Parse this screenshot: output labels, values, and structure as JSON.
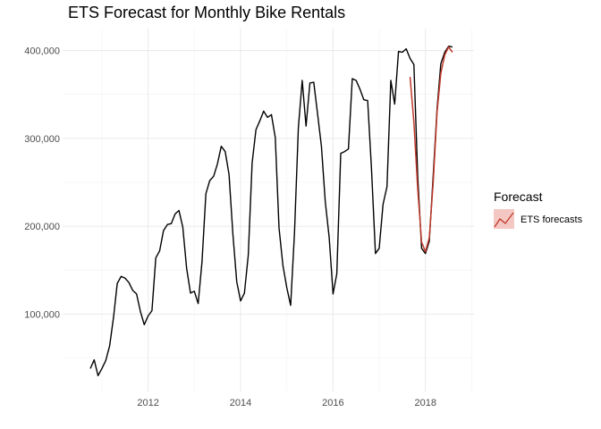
{
  "chart_data": {
    "type": "line",
    "title": "ETS Forecast for Monthly Bike Rentals",
    "xlabel": "",
    "ylabel": "",
    "xlim": [
      2010.15,
      2019.05
    ],
    "ylim": [
      12000,
      425000
    ],
    "x_ticks": [
      2012,
      2014,
      2016,
      2018
    ],
    "x_tick_labels": [
      "2012",
      "2014",
      "2016",
      "2018"
    ],
    "y_ticks": [
      100000,
      200000,
      300000,
      400000
    ],
    "y_tick_labels": [
      "100,000",
      "200,000",
      "300,000",
      "400,000"
    ],
    "grid": true,
    "legend": {
      "title": "Forecast",
      "position": "right",
      "entries": [
        {
          "label": "ETS forecasts",
          "color": "#c0392b",
          "fill": "#f4c7c3"
        }
      ]
    },
    "series": [
      {
        "color": "#000000",
        "x": [
          2010.75,
          2010.833,
          2010.917,
          2011.0,
          2011.083,
          2011.167,
          2011.25,
          2011.333,
          2011.417,
          2011.5,
          2011.583,
          2011.667,
          2011.75,
          2011.833,
          2011.917,
          2012.0,
          2012.083,
          2012.167,
          2012.25,
          2012.333,
          2012.417,
          2012.5,
          2012.583,
          2012.667,
          2012.75,
          2012.833,
          2012.917,
          2013.0,
          2013.083,
          2013.167,
          2013.25,
          2013.333,
          2013.417,
          2013.5,
          2013.583,
          2013.667,
          2013.75,
          2013.833,
          2013.917,
          2014.0,
          2014.083,
          2014.167,
          2014.25,
          2014.333,
          2014.417,
          2014.5,
          2014.583,
          2014.667,
          2014.75,
          2014.833,
          2014.917,
          2015.0,
          2015.083,
          2015.167,
          2015.25,
          2015.333,
          2015.417,
          2015.5,
          2015.583,
          2015.667,
          2015.75,
          2015.833,
          2015.917,
          2016.0,
          2016.083,
          2016.167,
          2016.25,
          2016.333,
          2016.417,
          2016.5,
          2016.583,
          2016.667,
          2016.75,
          2016.833,
          2016.917,
          2017.0,
          2017.083,
          2017.167,
          2017.25,
          2017.333,
          2017.417,
          2017.5,
          2017.583,
          2017.667,
          2017.75,
          2017.833,
          2017.917,
          2018.0,
          2018.083,
          2018.167,
          2018.25,
          2018.333,
          2018.417,
          2018.5,
          2018.583
        ],
        "y": [
          38000,
          48000,
          30000,
          38000,
          47000,
          64000,
          96000,
          135000,
          143000,
          141000,
          136000,
          127000,
          123000,
          103000,
          88000,
          98000,
          104000,
          164000,
          172000,
          195000,
          202000,
          203000,
          214000,
          218000,
          199000,
          152000,
          124000,
          126000,
          112000,
          160000,
          237000,
          252000,
          257000,
          271000,
          291000,
          285000,
          259000,
          191000,
          137000,
          115000,
          124000,
          167000,
          272000,
          310000,
          320000,
          331000,
          324000,
          327000,
          301000,
          198000,
          155000,
          130000,
          110000,
          193000,
          312000,
          366000,
          314000,
          363000,
          364000,
          328000,
          291000,
          228000,
          187000,
          123000,
          146000,
          283000,
          285000,
          288000,
          368000,
          366000,
          356000,
          344000,
          343000,
          265000,
          169000,
          175000,
          225000,
          245000,
          366000,
          339000,
          399000,
          398000,
          402000,
          391000,
          384000,
          256000,
          175000,
          169000,
          183000,
          258000,
          334000,
          385000,
          398000,
          405000,
          404000
        ]
      },
      {
        "name": "ETS forecasts",
        "color": "#c0392b",
        "x": [
          2017.667,
          2017.75,
          2017.833,
          2017.917,
          2018.0,
          2018.083,
          2018.167,
          2018.25,
          2018.333,
          2018.417,
          2018.5,
          2018.583
        ],
        "y": [
          370000,
          318000,
          242000,
          182000,
          171000,
          187000,
          250000,
          330000,
          374000,
          395000,
          404000,
          398000
        ]
      }
    ]
  }
}
